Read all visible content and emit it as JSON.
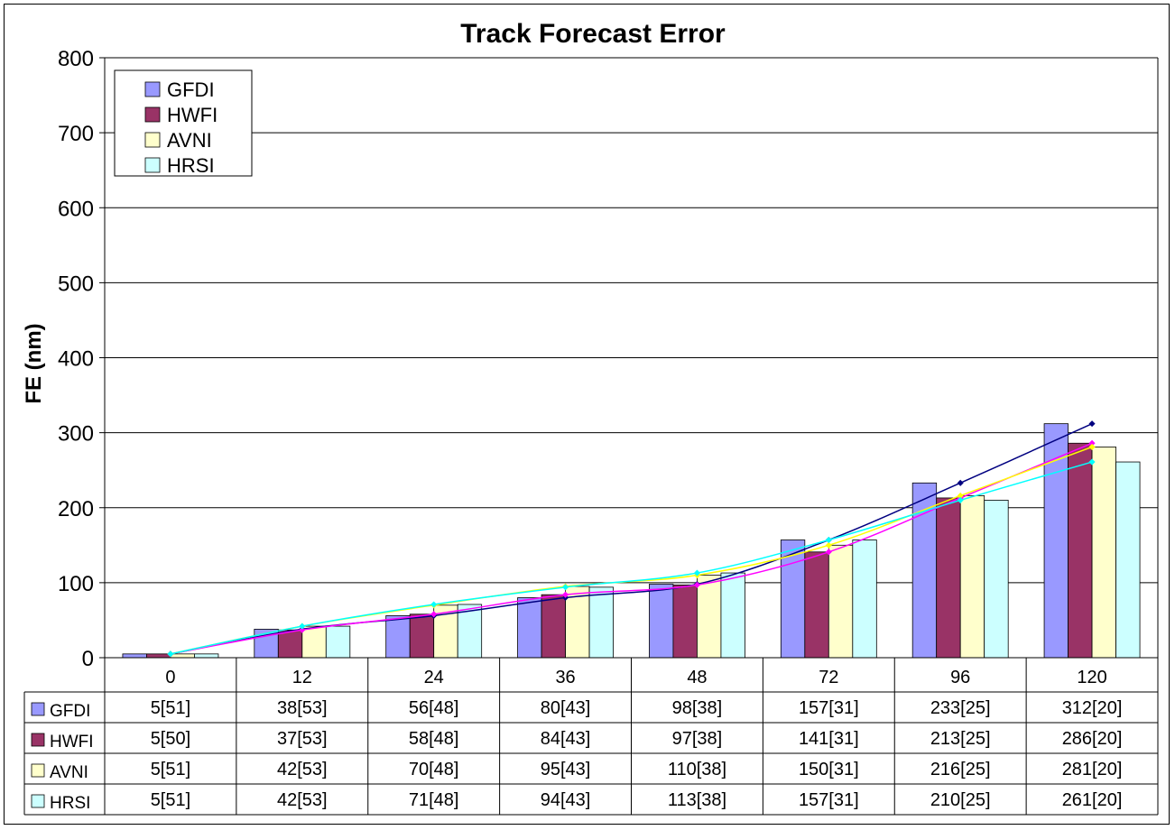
{
  "chart_data": {
    "type": "bar",
    "title": "Track Forecast Error",
    "ylabel": "FE (nm)",
    "xlabel": "",
    "ylim": [
      0,
      800
    ],
    "yticks": [
      0,
      100,
      200,
      300,
      400,
      500,
      600,
      700,
      800
    ],
    "grid": true,
    "legend_position": "top-left",
    "categories": [
      "0",
      "12",
      "24",
      "36",
      "48",
      "72",
      "96",
      "120"
    ],
    "series": [
      {
        "name": "GFDI",
        "values": [
          5,
          38,
          56,
          80,
          98,
          157,
          233,
          312
        ],
        "table_labels": [
          "5[51]",
          "38[53]",
          "56[48]",
          "80[43]",
          "98[38]",
          "157[31]",
          "233[25]",
          "312[20]"
        ],
        "bar_color": "#9999ff",
        "line_color": "#000080"
      },
      {
        "name": "HWFI",
        "values": [
          5,
          37,
          58,
          84,
          97,
          141,
          213,
          286
        ],
        "table_labels": [
          "5[50]",
          "37[53]",
          "58[48]",
          "84[43]",
          "97[38]",
          "141[31]",
          "213[25]",
          "286[20]"
        ],
        "bar_color": "#993366",
        "line_color": "#ff00ff"
      },
      {
        "name": "AVNI",
        "values": [
          5,
          42,
          70,
          95,
          110,
          150,
          216,
          281
        ],
        "table_labels": [
          "5[51]",
          "42[53]",
          "70[48]",
          "95[43]",
          "110[38]",
          "150[31]",
          "216[25]",
          "281[20]"
        ],
        "bar_color": "#ffffcc",
        "line_color": "#ffff00"
      },
      {
        "name": "HRSI",
        "values": [
          5,
          42,
          71,
          94,
          113,
          157,
          210,
          261
        ],
        "table_labels": [
          "5[51]",
          "42[53]",
          "71[48]",
          "94[43]",
          "113[38]",
          "157[31]",
          "210[25]",
          "261[20]"
        ],
        "bar_color": "#ccffff",
        "line_color": "#00ffff"
      }
    ]
  }
}
